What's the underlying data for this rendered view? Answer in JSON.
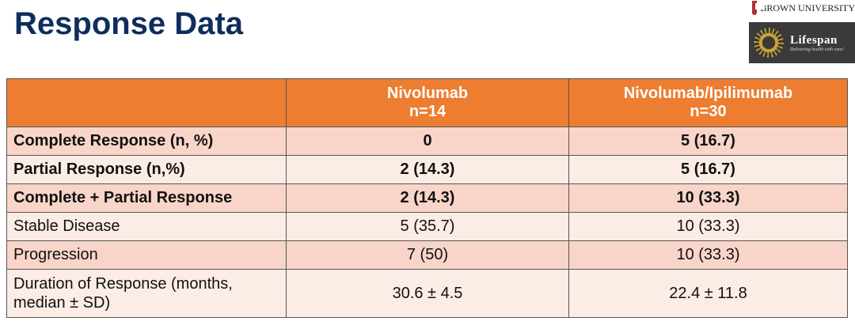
{
  "title": "Response Data",
  "logos": {
    "brown": "BROWN UNIVERSITY",
    "lifespan": "Lifespan",
    "lifespan_tagline": "Delivering health with care!"
  },
  "table": {
    "headers": [
      {
        "name": "",
        "n": ""
      },
      {
        "name": "Nivolumab",
        "n": "n=14"
      },
      {
        "name": "Nivolumab/Ipilimumab",
        "n": "n=30"
      }
    ],
    "rows": [
      {
        "label": "Complete Response (n, %)",
        "nivo": "0",
        "combo": "5 (16.7)",
        "bold": true
      },
      {
        "label": "Partial Response (n,%)",
        "nivo": "2 (14.3)",
        "combo": "5 (16.7)",
        "bold": true
      },
      {
        "label": "Complete + Partial Response",
        "nivo": "2 (14.3)",
        "combo": "10 (33.3)",
        "bold": true
      },
      {
        "label": "Stable Disease",
        "nivo": "5 (35.7)",
        "combo": "10 (33.3)",
        "bold": false
      },
      {
        "label": "Progression",
        "nivo": "7 (50)",
        "combo": "10 (33.3)",
        "bold": false
      },
      {
        "label": "Duration of Response (months, median ± SD)",
        "nivo": "30.6 ± 4.5",
        "combo": "22.4 ± 11.8",
        "bold": false
      }
    ]
  },
  "colors": {
    "title": "#0f2d5c",
    "header": "#ed7d31",
    "row_dark": "#f8d5c8",
    "row_light": "#fcece6"
  }
}
